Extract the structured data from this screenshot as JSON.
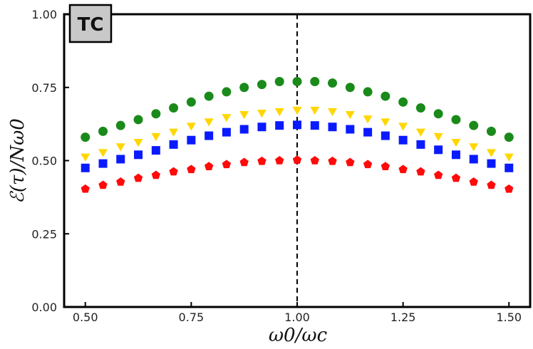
{
  "chart_data": {
    "type": "scatter",
    "title": "",
    "badge": "TC",
    "xlabel": "ω0/ωc",
    "ylabel": "ℰ(τ)/Nω0",
    "xlim": [
      0.45,
      1.55
    ],
    "ylim": [
      0.0,
      1.0
    ],
    "xticks": [
      "0.50",
      "0.75",
      "1.00",
      "1.25",
      "1.50"
    ],
    "yticks": [
      "0.00",
      "0.25",
      "0.50",
      "0.75",
      "1.00"
    ],
    "vline": 1.0,
    "x": [
      0.5,
      0.5417,
      0.5833,
      0.625,
      0.6667,
      0.7083,
      0.75,
      0.7917,
      0.8333,
      0.875,
      0.9167,
      0.9583,
      1.0,
      1.0417,
      1.0833,
      1.125,
      1.1667,
      1.2083,
      1.25,
      1.2917,
      1.3333,
      1.375,
      1.4167,
      1.4583,
      1.5
    ],
    "series": [
      {
        "name": "green-circles",
        "marker": "circle",
        "color": "#1a8a1a",
        "values": [
          0.58,
          0.6,
          0.62,
          0.64,
          0.66,
          0.68,
          0.7,
          0.72,
          0.735,
          0.75,
          0.76,
          0.77,
          0.77,
          0.77,
          0.765,
          0.75,
          0.735,
          0.72,
          0.7,
          0.68,
          0.66,
          0.64,
          0.62,
          0.6,
          0.58
        ]
      },
      {
        "name": "yellow-triangles",
        "marker": "triangle-down",
        "color": "#ffd700",
        "values": [
          0.515,
          0.53,
          0.55,
          0.565,
          0.585,
          0.6,
          0.62,
          0.635,
          0.65,
          0.66,
          0.665,
          0.67,
          0.675,
          0.675,
          0.67,
          0.66,
          0.645,
          0.635,
          0.62,
          0.6,
          0.585,
          0.565,
          0.55,
          0.53,
          0.515
        ]
      },
      {
        "name": "blue-squares",
        "marker": "square",
        "color": "#0a1aff",
        "values": [
          0.475,
          0.49,
          0.505,
          0.52,
          0.535,
          0.555,
          0.57,
          0.585,
          0.597,
          0.607,
          0.615,
          0.62,
          0.622,
          0.62,
          0.615,
          0.607,
          0.597,
          0.585,
          0.57,
          0.555,
          0.537,
          0.52,
          0.505,
          0.49,
          0.475
        ]
      },
      {
        "name": "red-pentagons",
        "marker": "pentagon",
        "color": "#ff0a0a",
        "values": [
          0.403,
          0.416,
          0.427,
          0.44,
          0.45,
          0.462,
          0.47,
          0.48,
          0.487,
          0.494,
          0.498,
          0.5,
          0.502,
          0.5,
          0.498,
          0.494,
          0.487,
          0.48,
          0.47,
          0.462,
          0.45,
          0.44,
          0.427,
          0.416,
          0.403
        ]
      }
    ]
  }
}
